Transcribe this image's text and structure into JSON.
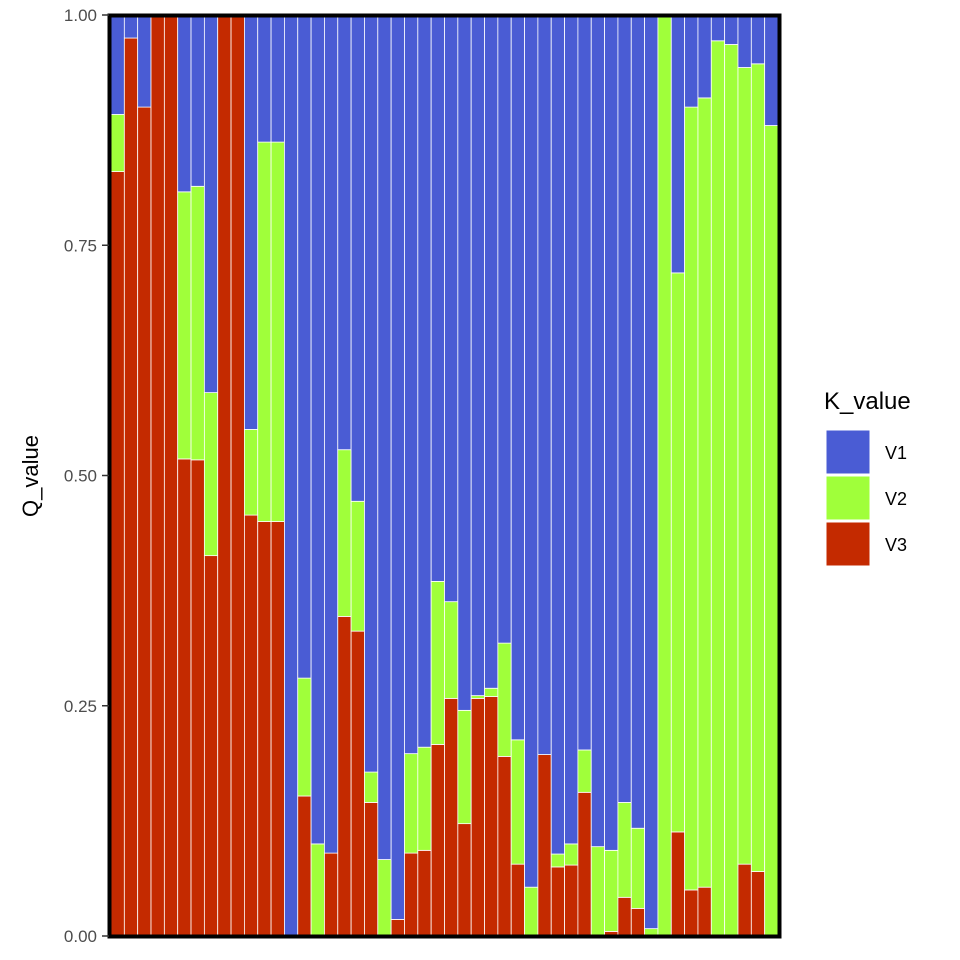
{
  "chart_data": {
    "type": "bar",
    "stacked": true,
    "xlabel": "",
    "ylabel": "Q_value",
    "ylim": [
      0,
      1
    ],
    "y_ticks": [
      "0.00",
      "0.25",
      "0.50",
      "0.75",
      "1.00"
    ],
    "grid": false,
    "legend": {
      "title": "K_value",
      "placement": "right"
    },
    "colors": {
      "V1": "#4a5cd4",
      "V2": "#a0ff3a",
      "V3": "#c42a00"
    },
    "series": [
      {
        "name": "V3",
        "values": [
          0.83,
          0.975,
          0.9,
          1.0,
          1.0,
          0.518,
          0.517,
          0.413,
          1.0,
          1.0,
          0.457,
          0.45,
          0.45,
          0.0,
          0.152,
          0.0,
          0.09,
          0.347,
          0.331,
          0.145,
          0.0,
          0.018,
          0.09,
          0.093,
          0.208,
          0.258,
          0.122,
          0.258,
          0.26,
          0.195,
          0.078,
          0.0,
          0.197,
          0.075,
          0.077,
          0.156,
          0.0,
          0.005,
          0.042,
          0.03,
          0.0,
          0.0,
          0.113,
          0.05,
          0.053,
          0.0,
          0.0,
          0.078,
          0.07,
          0.0
        ]
      },
      {
        "name": "V2",
        "values": [
          0.062,
          0.0,
          0.0,
          0.0,
          0.0,
          0.29,
          0.297,
          0.177,
          0.0,
          0.0,
          0.093,
          0.412,
          0.412,
          0.0,
          0.128,
          0.1,
          0.0,
          0.181,
          0.141,
          0.033,
          0.083,
          0.0,
          0.108,
          0.112,
          0.177,
          0.105,
          0.123,
          0.003,
          0.009,
          0.123,
          0.135,
          0.053,
          0.0,
          0.014,
          0.023,
          0.046,
          0.097,
          0.088,
          0.103,
          0.087,
          0.008,
          1.0,
          0.607,
          0.85,
          0.857,
          0.972,
          0.968,
          0.865,
          0.877,
          0.88
        ]
      },
      {
        "name": "V1",
        "values": [
          0.108,
          0.025,
          0.1,
          0.0,
          0.0,
          0.192,
          0.186,
          0.41,
          0.0,
          0.0,
          0.45,
          0.138,
          0.138,
          1.0,
          0.72,
          0.9,
          0.91,
          0.472,
          0.528,
          0.822,
          0.917,
          0.982,
          0.802,
          0.795,
          0.615,
          0.637,
          0.755,
          0.739,
          0.731,
          0.682,
          0.787,
          0.947,
          0.803,
          0.911,
          0.9,
          0.798,
          0.903,
          0.907,
          0.855,
          0.883,
          0.992,
          0.0,
          0.28,
          0.1,
          0.09,
          0.028,
          0.032,
          0.057,
          0.053,
          0.12
        ]
      }
    ]
  }
}
